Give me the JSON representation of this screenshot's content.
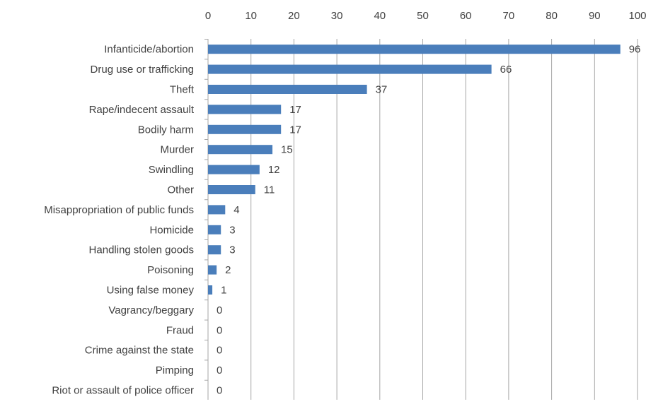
{
  "chart_data": {
    "type": "bar",
    "orientation": "horizontal",
    "title": "",
    "xlabel": "",
    "ylabel": "",
    "xlim": [
      0,
      100
    ],
    "x_ticks": [
      "0",
      "10",
      "20",
      "30",
      "40",
      "50",
      "60",
      "70",
      "80",
      "90",
      "100"
    ],
    "x_axis_position": "top",
    "grid": true,
    "legend": "none",
    "bar_color": "#4a7ebb",
    "categories": [
      "Infanticide/abortion",
      "Drug use or trafficking",
      "Theft",
      "Rape/indecent assault",
      "Bodily harm",
      "Murder",
      "Swindling",
      "Other",
      "Misappropriation of public funds",
      "Homicide",
      "Handling stolen goods",
      "Poisoning",
      "Using false money",
      "Vagrancy/beggary",
      "Fraud",
      "Crime against the state",
      "Pimping",
      "Riot or assault of police officer"
    ],
    "values": [
      96,
      66,
      37,
      17,
      17,
      15,
      12,
      11,
      4,
      3,
      3,
      2,
      1,
      0,
      0,
      0,
      0,
      0
    ],
    "data_labels": [
      "96",
      "66",
      "37",
      "17",
      "17",
      "15",
      "12",
      "11",
      "4",
      "3",
      "3",
      "2",
      "1",
      "0",
      "0",
      "0",
      "0",
      "0"
    ]
  }
}
